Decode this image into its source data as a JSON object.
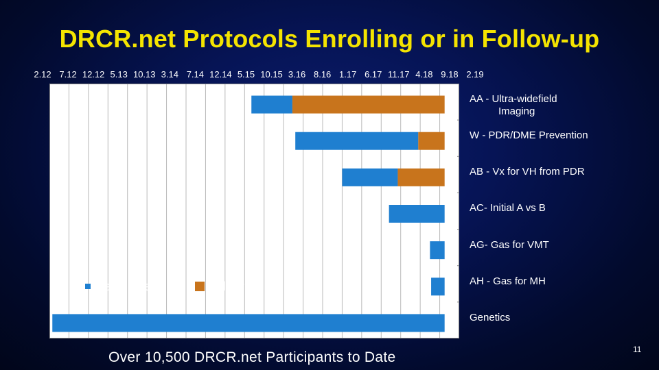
{
  "slide": {
    "title": "DRCR.net Protocols Enrolling or in Follow-up",
    "footer": "Over 10,500 DRCR.net Participants to Date",
    "page_number": "11"
  },
  "chart_data": {
    "type": "bar",
    "orientation": "horizontal-gantt",
    "x_ticks": [
      "2.12",
      "7.12",
      "12.12",
      "5.13",
      "10.13",
      "3.14",
      "7.14",
      "12.14",
      "5.15",
      "10.15",
      "3.16",
      "8.16",
      "1.17",
      "6.17",
      "11.17",
      "4.18",
      "9.18",
      "2.19"
    ],
    "xlim": [
      "2.12",
      "2.19"
    ],
    "categories": [
      [
        "AA - Ultra-widefield",
        "Imaging"
      ],
      [
        "W - PDR/DME Prevention"
      ],
      [
        "AB - Vx for VH from PDR"
      ],
      [
        "AC- Initial A vs B"
      ],
      [
        "AG- Gas for VMT"
      ],
      [
        "AH - Gas for MH"
      ],
      [
        "Genetics"
      ]
    ],
    "series": [
      {
        "name": "Recruitment",
        "color": "#1f7fd0",
        "ranges": [
          [
            3.45,
            4.15
          ],
          [
            4.2,
            6.3
          ],
          [
            5.0,
            5.95
          ],
          [
            5.8,
            6.75
          ],
          [
            6.5,
            6.75
          ],
          [
            6.52,
            6.75
          ],
          [
            0.05,
            6.75
          ]
        ]
      },
      {
        "name": "Followup",
        "color": "#c8741c",
        "ranges": [
          [
            4.15,
            6.75
          ],
          [
            6.3,
            6.75
          ],
          [
            5.95,
            6.75
          ],
          null,
          null,
          null,
          null
        ]
      }
    ],
    "x_units": "slot index from 2.12 (0) to 2.19 (7)",
    "grid": true,
    "legend_position": "inside-bottom-left"
  }
}
